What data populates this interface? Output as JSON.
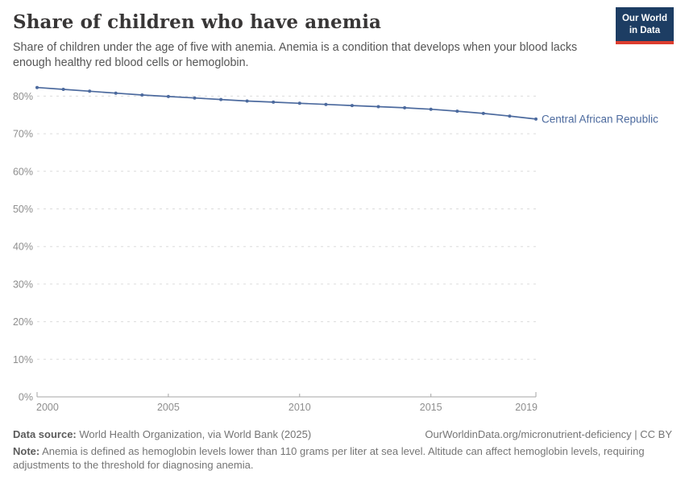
{
  "header": {
    "title": "Share of children who have anemia",
    "subtitle": "Share of children under the age of five with anemia. Anemia is a condition that develops when your blood lacks enough healthy red blood cells or hemoglobin.",
    "logo": {
      "line1": "Our World",
      "line2": "in Data",
      "bg_color": "#1d3d63",
      "accent_color": "#dc3d2f"
    }
  },
  "chart_data": {
    "type": "line",
    "title": "Share of children who have anemia",
    "series": [
      {
        "name": "Central African Republic",
        "x": [
          2000,
          2001,
          2002,
          2003,
          2004,
          2005,
          2006,
          2007,
          2008,
          2009,
          2010,
          2011,
          2012,
          2013,
          2014,
          2015,
          2016,
          2017,
          2018,
          2019
        ],
        "values": [
          82.3,
          81.8,
          81.3,
          80.8,
          80.3,
          79.9,
          79.5,
          79.1,
          78.7,
          78.4,
          78.1,
          77.8,
          77.5,
          77.2,
          76.9,
          76.5,
          76.0,
          75.4,
          74.7,
          73.9
        ]
      }
    ],
    "unit": "%",
    "xlabel": "",
    "ylabel": "",
    "ylim": [
      0,
      85
    ],
    "y_ticks": [
      0,
      10,
      20,
      30,
      40,
      50,
      60,
      70,
      80
    ],
    "x_ticks": [
      2000,
      2005,
      2010,
      2015,
      2019
    ],
    "grid": true,
    "grid_style": "dashed",
    "legend_position": "end-of-line-label",
    "line_color": "#4c6a9e",
    "label_color": "#4c6a9e",
    "grid_color": "#dcdcdc",
    "axis_color": "#a5a5a5",
    "tick_text_color": "#8e8e8e"
  },
  "footer": {
    "datasource_label": "Data source:",
    "datasource_text": " World Health Organization, via World Bank (2025)",
    "link_text": "OurWorldinData.org/micronutrient-deficiency | CC BY",
    "note_label": "Note:",
    "note_text": " Anemia is defined as hemoglobin levels lower than 110 grams per liter at sea level. Altitude can affect hemoglobin levels, requiring adjustments to the threshold for diagnosing anemia."
  }
}
